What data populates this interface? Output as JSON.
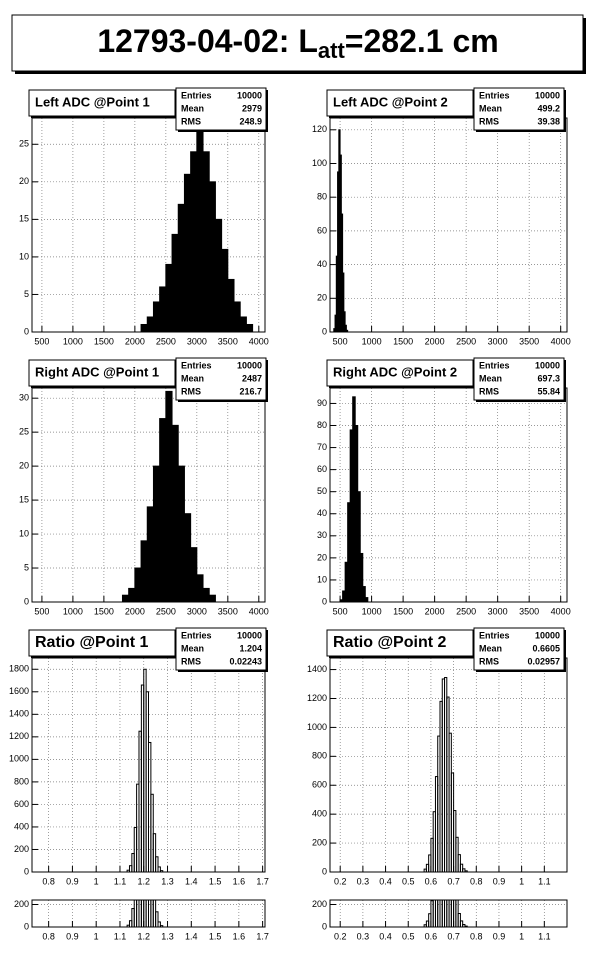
{
  "title": [
    "12793-04-02: L",
    "att",
    "=282.1 cm"
  ],
  "chart_data": [
    {
      "type": "histogram",
      "title": "Left ADC @Point 1",
      "color": "#000000",
      "filled": true,
      "grid": true,
      "stats": [
        {
          "label": "Entries",
          "value": 10000
        },
        {
          "label": "Mean",
          "value": 2979
        },
        {
          "label": "RMS",
          "value": 248.9
        }
      ],
      "bins": [
        2100,
        2200,
        2300,
        2400,
        2500,
        2600,
        2700,
        2800,
        2900,
        3000,
        3100,
        3200,
        3300,
        3400,
        3500,
        3600,
        3700,
        3800,
        3900
      ],
      "counts": [
        1,
        2,
        4,
        6,
        9,
        13,
        17,
        21,
        24,
        27,
        24,
        20,
        15,
        11,
        7,
        4,
        2,
        1
      ],
      "xlim": [
        340,
        4100
      ],
      "xticks": [
        500,
        1000,
        1500,
        2000,
        2500,
        3000,
        3500,
        4000
      ],
      "ylim": [
        0,
        28.5
      ],
      "yticks": [
        0,
        5,
        10,
        15,
        20,
        25
      ]
    },
    {
      "type": "histogram",
      "title": "Left ADC @Point 2",
      "color": "#000000",
      "filled": true,
      "grid": true,
      "stats": [
        {
          "label": "Entries",
          "value": 10000
        },
        {
          "label": "Mean",
          "value": 499.2
        },
        {
          "label": "RMS",
          "value": 39.38
        }
      ],
      "bins": [
        400,
        420,
        440,
        460,
        480,
        500,
        520,
        540,
        560,
        580,
        600,
        620,
        640
      ],
      "counts": [
        2,
        10,
        45,
        95,
        120,
        105,
        70,
        35,
        12,
        4,
        1,
        0
      ],
      "xlim": [
        340,
        4100
      ],
      "xticks": [
        500,
        1000,
        1500,
        2000,
        2500,
        3000,
        3500,
        4000
      ],
      "ylim": [
        0,
        127
      ],
      "yticks": [
        0,
        20,
        40,
        60,
        80,
        100,
        120
      ]
    },
    {
      "type": "histogram",
      "title": "Right ADC @Point 1",
      "color": "#000000",
      "filled": true,
      "grid": true,
      "stats": [
        {
          "label": "Entries",
          "value": 10000
        },
        {
          "label": "Mean",
          "value": 2487
        },
        {
          "label": "RMS",
          "value": 216.7
        }
      ],
      "bins": [
        1800,
        1900,
        2000,
        2100,
        2200,
        2300,
        2400,
        2500,
        2600,
        2700,
        2800,
        2900,
        3000,
        3100,
        3200,
        3300
      ],
      "counts": [
        1,
        2,
        5,
        9,
        14,
        20,
        27,
        31,
        26,
        20,
        13,
        8,
        4,
        2,
        1
      ],
      "xlim": [
        340,
        4100
      ],
      "xticks": [
        500,
        1000,
        1500,
        2000,
        2500,
        3000,
        3500,
        4000
      ],
      "ylim": [
        0,
        31.5
      ],
      "yticks": [
        0,
        5,
        10,
        15,
        20,
        25,
        30
      ]
    },
    {
      "type": "histogram",
      "title": "Right ADC @Point 2",
      "color": "#000000",
      "filled": true,
      "grid": true,
      "stats": [
        {
          "label": "Entries",
          "value": 10000
        },
        {
          "label": "Mean",
          "value": 697.3
        },
        {
          "label": "RMS",
          "value": 55.84
        }
      ],
      "bins": [
        500,
        540,
        580,
        620,
        660,
        700,
        740,
        780,
        820,
        860,
        900,
        940
      ],
      "counts": [
        1,
        5,
        18,
        45,
        78,
        93,
        80,
        50,
        22,
        7,
        2
      ],
      "xlim": [
        340,
        4100
      ],
      "xticks": [
        500,
        1000,
        1500,
        2000,
        2500,
        3000,
        3500,
        4000
      ],
      "ylim": [
        0,
        97
      ],
      "yticks": [
        0,
        10,
        20,
        30,
        40,
        50,
        60,
        70,
        80,
        90
      ]
    },
    {
      "type": "histogram",
      "title": "Ratio @Point 1",
      "color": "#000000",
      "filled": false,
      "grid": true,
      "stats": [
        {
          "label": "Entries",
          "value": 10000
        },
        {
          "label": "Mean",
          "value": 1.204
        },
        {
          "label": "RMS",
          "value": 0.02243
        }
      ],
      "bins": [
        1.13,
        1.14,
        1.15,
        1.16,
        1.17,
        1.18,
        1.19,
        1.2,
        1.21,
        1.22,
        1.23,
        1.24,
        1.25,
        1.26,
        1.27,
        1.28
      ],
      "counts": [
        16,
        56,
        164,
        395,
        780,
        1250,
        1660,
        1800,
        1600,
        1150,
        690,
        340,
        135,
        45,
        12
      ],
      "xlim": [
        0.73,
        1.71
      ],
      "xticks": [
        0.8,
        0.9,
        1,
        1.1,
        1.2,
        1.3,
        1.4,
        1.5,
        1.6,
        1.7
      ],
      "ylim": [
        0,
        1900
      ],
      "yticks": [
        0,
        200,
        400,
        600,
        800,
        1000,
        1200,
        1400,
        1600,
        1800
      ],
      "inset": {
        "xticks": [
          0.8,
          0.9,
          1,
          1.1,
          1.2,
          1.3,
          1.4,
          1.5,
          1.6,
          1.7
        ],
        "ylim": [
          0,
          240
        ],
        "yticks": [
          0,
          200
        ]
      }
    },
    {
      "type": "histogram",
      "title": "Ratio @Point 2",
      "color": "#000000",
      "filled": false,
      "grid": true,
      "stats": [
        {
          "label": "Entries",
          "value": 10000
        },
        {
          "label": "Mean",
          "value": 0.6605
        },
        {
          "label": "RMS",
          "value": 0.02957
        }
      ],
      "bins": [
        0.57,
        0.58,
        0.59,
        0.6,
        0.61,
        0.62,
        0.63,
        0.64,
        0.65,
        0.66,
        0.67,
        0.68,
        0.69,
        0.7,
        0.71,
        0.72,
        0.73,
        0.74,
        0.75,
        0.76
      ],
      "counts": [
        20,
        53,
        118,
        233,
        417,
        660,
        940,
        1180,
        1335,
        1345,
        1210,
        960,
        685,
        425,
        240,
        120,
        54,
        22,
        8
      ],
      "xlim": [
        0.155,
        1.2
      ],
      "xticks": [
        0.2,
        0.3,
        0.4,
        0.5,
        0.6,
        0.7,
        0.8,
        0.9,
        1,
        1.1
      ],
      "ylim": [
        0,
        1480
      ],
      "yticks": [
        0,
        200,
        400,
        600,
        800,
        1000,
        1200,
        1400
      ],
      "inset": {
        "xticks": [
          0.2,
          0.3,
          0.4,
          0.5,
          0.6,
          0.7,
          0.8,
          0.9,
          1,
          1.1
        ],
        "ylim": [
          0,
          240
        ],
        "yticks": [
          0,
          200
        ]
      }
    }
  ]
}
